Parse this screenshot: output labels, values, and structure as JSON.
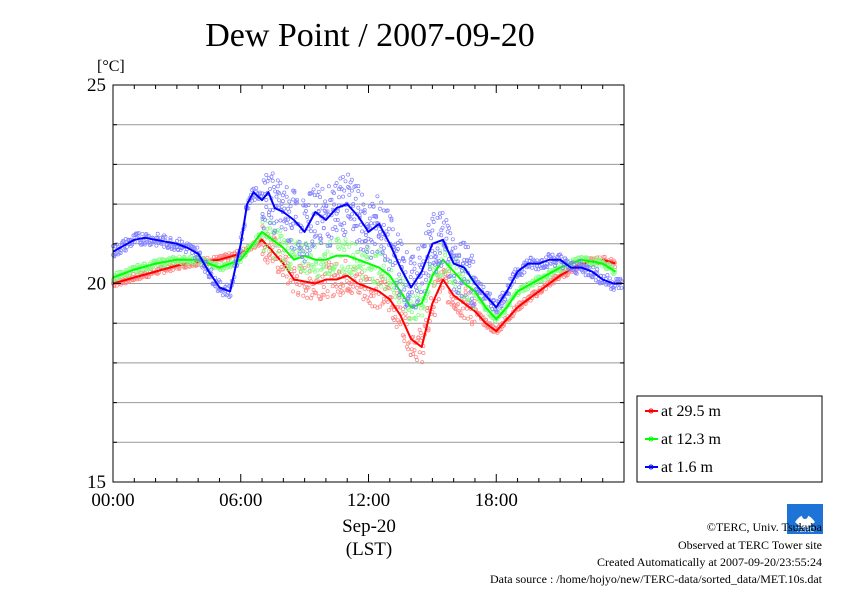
{
  "chart_data": {
    "type": "line",
    "title": "Dew Point / 2007-09-20",
    "ylabel_unit": "[°C]",
    "ylim": [
      15,
      25
    ],
    "xlim": [
      0,
      24
    ],
    "y_ticks": [
      {
        "value": 15,
        "label": "15"
      },
      {
        "value": 20,
        "label": "20"
      },
      {
        "value": 25,
        "label": "25"
      }
    ],
    "x_ticks": [
      {
        "value": 0,
        "label": "00:00"
      },
      {
        "value": 6,
        "label": "06:00"
      },
      {
        "value": 12,
        "label": "12:00"
      },
      {
        "value": 18,
        "label": "18:00"
      }
    ],
    "x_date_label": "Sep-20",
    "x_axis_label": "(LST)",
    "grid": true,
    "legend_position": "right-bottom",
    "series": [
      {
        "name": "at 29.5 m",
        "color": "#ff0000",
        "x": [
          0,
          1,
          2,
          3,
          4,
          5,
          6,
          7,
          7.5,
          8,
          8.5,
          9,
          9.5,
          10,
          10.5,
          11,
          11.5,
          12,
          12.5,
          13,
          13.5,
          14,
          14.5,
          15,
          15.5,
          16,
          16.5,
          17,
          17.5,
          18,
          18.5,
          19,
          20,
          21,
          22,
          23,
          23.6
        ],
        "y": [
          20.0,
          20.15,
          20.3,
          20.45,
          20.55,
          20.6,
          20.75,
          21.1,
          20.8,
          20.5,
          20.1,
          20.05,
          20.0,
          20.1,
          20.1,
          20.2,
          20.0,
          19.9,
          19.8,
          19.6,
          19.2,
          18.6,
          18.4,
          19.5,
          20.1,
          19.7,
          19.5,
          19.3,
          19.0,
          18.8,
          19.1,
          19.4,
          19.8,
          20.2,
          20.5,
          20.6,
          20.5
        ]
      },
      {
        "name": "at 12.3 m",
        "color": "#00ff00",
        "x": [
          0,
          1,
          2,
          3,
          4,
          5,
          6,
          7,
          7.5,
          8,
          8.5,
          9,
          9.5,
          10,
          10.5,
          11,
          11.5,
          12,
          12.5,
          13,
          13.5,
          14,
          14.5,
          15,
          15.5,
          16,
          16.5,
          17,
          17.5,
          18,
          18.5,
          19,
          20,
          21,
          22,
          23,
          23.6
        ],
        "y": [
          20.15,
          20.35,
          20.5,
          20.6,
          20.6,
          20.4,
          20.6,
          21.3,
          21.1,
          20.9,
          20.6,
          20.7,
          20.6,
          20.6,
          20.7,
          20.7,
          20.6,
          20.5,
          20.4,
          20.2,
          19.8,
          19.4,
          19.5,
          20.2,
          20.6,
          20.3,
          20.0,
          19.8,
          19.4,
          19.1,
          19.4,
          19.8,
          20.1,
          20.4,
          20.6,
          20.5,
          20.3
        ]
      },
      {
        "name": "at 1.6 m",
        "color": "#0000ff",
        "x": [
          0,
          0.5,
          1,
          1.5,
          2,
          2.5,
          3,
          3.5,
          4,
          4.5,
          5,
          5.5,
          6,
          6.3,
          6.6,
          7,
          7.3,
          7.6,
          8,
          8.5,
          9,
          9.5,
          10,
          10.5,
          11,
          11.5,
          12,
          12.5,
          13,
          13.5,
          14,
          14.5,
          15,
          15.5,
          16,
          16.5,
          17,
          17.5,
          18,
          18.5,
          19,
          19.5,
          20,
          20.5,
          21,
          21.5,
          22,
          22.5,
          23,
          23.5,
          23.9
        ],
        "y": [
          20.8,
          20.95,
          21.1,
          21.15,
          21.1,
          21.05,
          21.0,
          20.9,
          20.75,
          20.3,
          19.9,
          19.8,
          21.0,
          22.0,
          22.3,
          22.1,
          22.3,
          21.9,
          21.8,
          21.6,
          21.3,
          21.8,
          21.6,
          21.9,
          22.0,
          21.7,
          21.3,
          21.5,
          21.0,
          20.4,
          19.9,
          20.3,
          21.0,
          21.1,
          20.5,
          20.4,
          20.0,
          19.7,
          19.4,
          19.8,
          20.3,
          20.5,
          20.5,
          20.6,
          20.6,
          20.4,
          20.4,
          20.3,
          20.1,
          20.0,
          20.0
        ]
      }
    ]
  },
  "footer": {
    "copyright": "©TERC, Univ. Tsukuba",
    "observed": "Observed at TERC Tower site",
    "created": "Created Automatically at 2007-09-20/23:55:24",
    "source": "Data source : /home/hojyo/new/TERC-data/sorted_data/MET.10s.dat",
    "logo_text": "TERC"
  }
}
